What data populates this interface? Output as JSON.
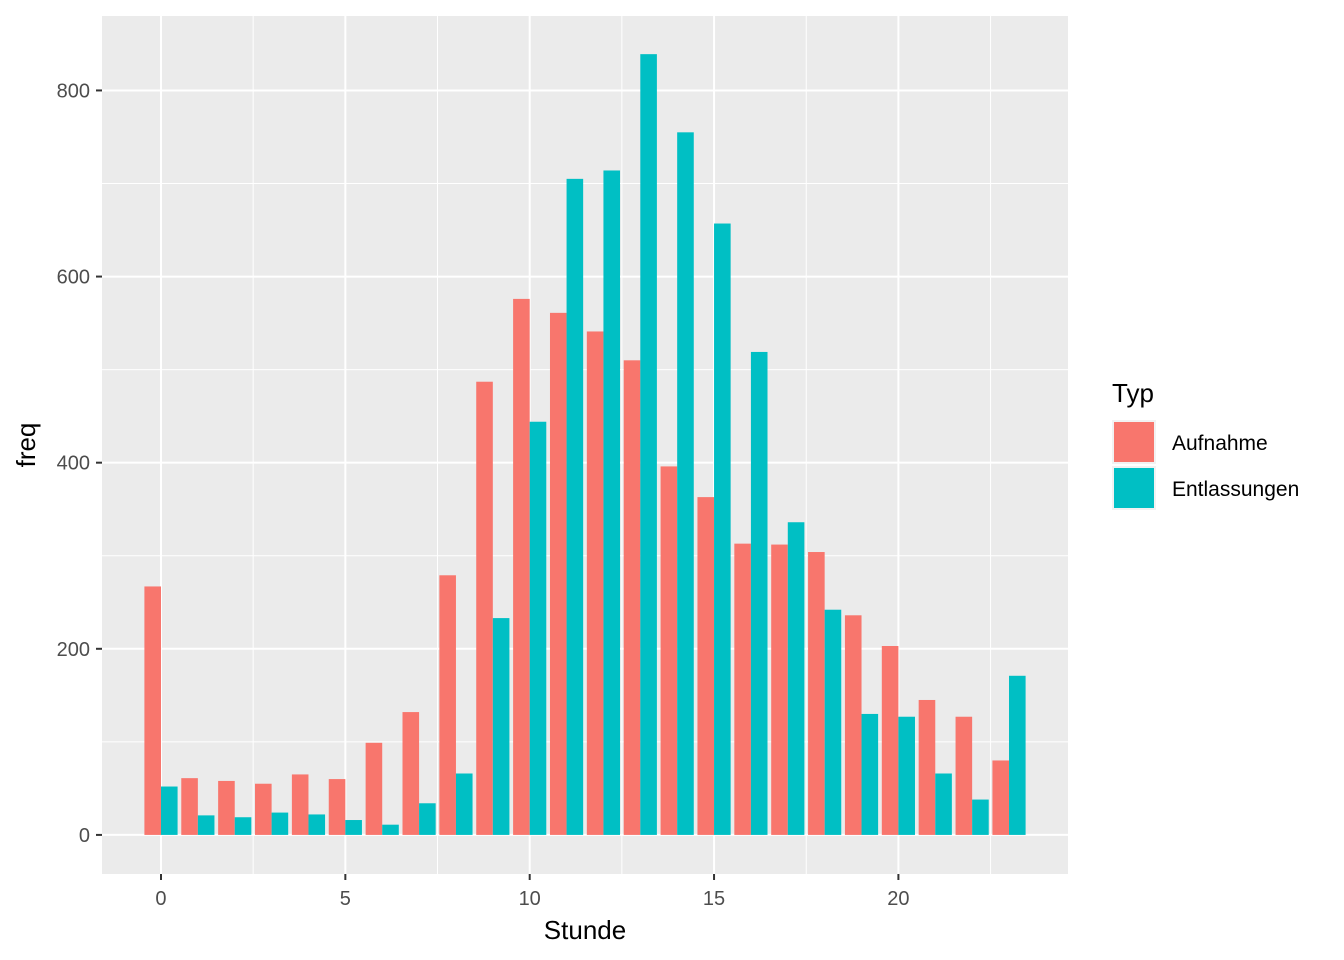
{
  "chart_data": {
    "type": "bar",
    "xlabel": "Stunde",
    "ylabel": "freq",
    "x": [
      0,
      1,
      2,
      3,
      4,
      5,
      6,
      7,
      8,
      9,
      10,
      11,
      12,
      13,
      14,
      15,
      16,
      17,
      18,
      19,
      20,
      21,
      22,
      23
    ],
    "xlim": [
      -1.6,
      24.6
    ],
    "ylim": [
      -42,
      880
    ],
    "x_ticks": [
      0,
      5,
      10,
      15,
      20
    ],
    "x_tick_labels": [
      "0",
      "5",
      "10",
      "15",
      "20"
    ],
    "y_ticks": [
      0,
      200,
      400,
      600,
      800
    ],
    "y_tick_labels": [
      "0",
      "200",
      "400",
      "600",
      "800"
    ],
    "grid": true,
    "legend": {
      "title": "Typ",
      "position": "right"
    },
    "series": [
      {
        "name": "Aufnahme",
        "color": "#F8766D",
        "values": [
          267,
          61,
          58,
          55,
          65,
          60,
          99,
          132,
          279,
          487,
          576,
          561,
          541,
          510,
          396,
          363,
          313,
          312,
          304,
          236,
          203,
          145,
          127,
          80
        ]
      },
      {
        "name": "Entlassungen",
        "color": "#00BFC4",
        "values": [
          52,
          21,
          19,
          24,
          22,
          16,
          11,
          34,
          66,
          233,
          444,
          705,
          714,
          839,
          755,
          657,
          519,
          336,
          242,
          130,
          127,
          66,
          38,
          171
        ]
      }
    ]
  }
}
